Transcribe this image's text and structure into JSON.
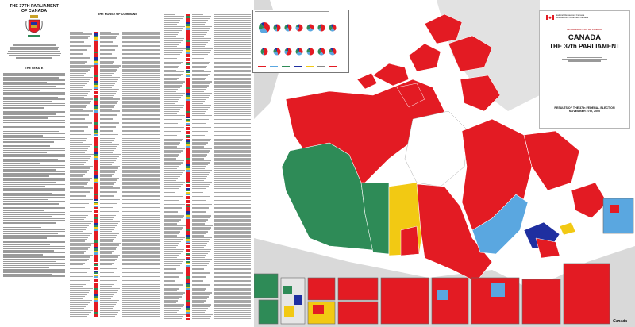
{
  "title": {
    "line1": "THE 37TH PARLIAMENT",
    "line2": "OF CANADA"
  },
  "senate": {
    "heading": "THE SENATE"
  },
  "commons": {
    "heading": "THE HOUSE OF COMMONS"
  },
  "brand": {
    "gov_name_en": "Natural Resources Canada",
    "gov_name_fr": "Ressources naturelles Canada",
    "atlas_label": "NATIONAL ATLAS OF CANADA",
    "map_title": "CANADA",
    "map_subtitle": "THE 37th PARLIAMENT",
    "results_line1": "RESULTS OF THE 37th FEDERAL ELECTION",
    "results_line2": "NOVEMBER 27th, 2000"
  },
  "wordmark": "Canada",
  "colors": {
    "liberal": "#e31b23",
    "alliance": "#2e8b57",
    "ndp": "#f2c913",
    "bloc": "#5aa7e0",
    "pc": "#1f2fa0",
    "water": "#ffffff",
    "foreign": "#d9d9d9",
    "crest_gold": "#c9a227"
  },
  "pie_colors": [
    "#e31b23",
    "#5aa7e0",
    "#2e8b57",
    "#1f2fa0",
    "#f2c913",
    "#888888"
  ]
}
